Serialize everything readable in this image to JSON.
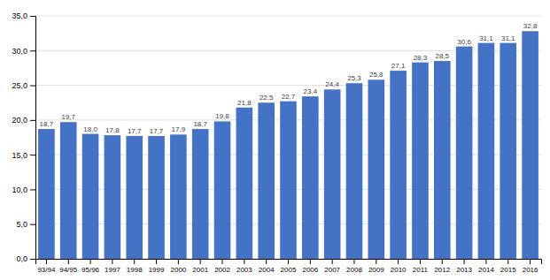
{
  "chart_data": {
    "type": "bar",
    "categories": [
      "93/94",
      "94/95",
      "95/96",
      "1997",
      "1998",
      "1999",
      "2000",
      "2001",
      "2002",
      "2003",
      "2004",
      "2005",
      "2006",
      "2007",
      "2008",
      "2009",
      "2010",
      "2011",
      "2012",
      "2013",
      "2014",
      "2015",
      "2016"
    ],
    "values": [
      18.7,
      19.7,
      18.0,
      17.8,
      17.7,
      17.7,
      17.9,
      18.7,
      19.8,
      21.8,
      22.5,
      22.7,
      23.4,
      24.4,
      25.3,
      25.8,
      27.1,
      28.3,
      28.5,
      30.6,
      31.1,
      31.1,
      32.8
    ],
    "value_labels": [
      "18,7",
      "19,7",
      "18,0",
      "17,8",
      "17,7",
      "17,7",
      "17,9",
      "18,7",
      "19,8",
      "21,8",
      "22,5",
      "22,7",
      "23,4",
      "24,4",
      "25,3",
      "25,8",
      "27,1",
      "28,3",
      "28,5",
      "30,6",
      "31,1",
      "31,1",
      "32,8"
    ],
    "data_labels": true,
    "color": "#4472C4",
    "ylim": [
      0,
      35
    ],
    "yticks": [
      {
        "value": 0,
        "label": "0,0"
      },
      {
        "value": 5,
        "label": "5,0"
      },
      {
        "value": 10,
        "label": "10,0"
      },
      {
        "value": 15,
        "label": "15,0"
      },
      {
        "value": 20,
        "label": "20,0"
      },
      {
        "value": 25,
        "label": "25,0"
      },
      {
        "value": 30,
        "label": "30,0"
      },
      {
        "value": 35,
        "label": "35,0"
      }
    ],
    "grid": true
  }
}
